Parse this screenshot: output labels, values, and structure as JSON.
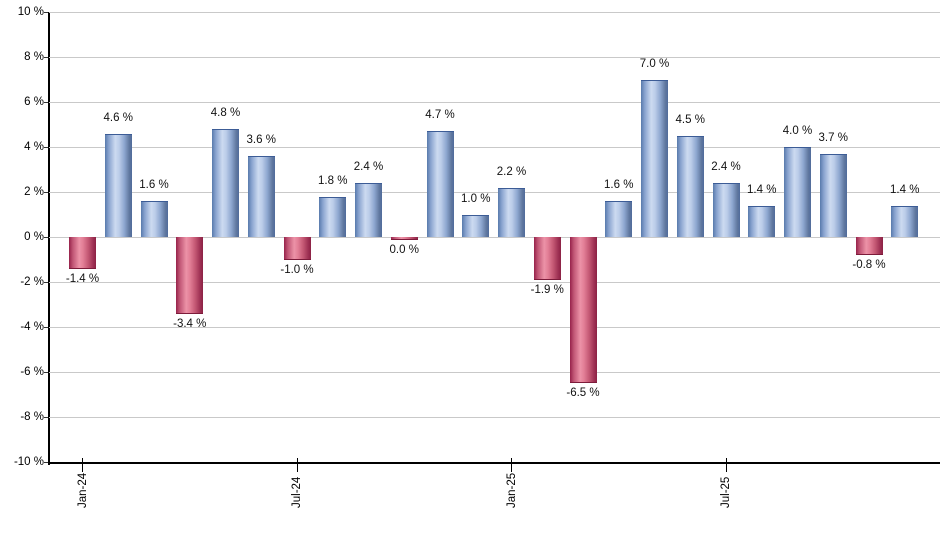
{
  "chart_data": {
    "type": "bar",
    "title": "",
    "categories": [
      "Jan-24",
      "Feb-24",
      "Mar-24",
      "Apr-24",
      "May-24",
      "Jun-24",
      "Jul-24",
      "Aug-24",
      "Sep-24",
      "Oct-24",
      "Nov-24",
      "Dec-24",
      "Jan-25",
      "Feb-25",
      "Mar-25",
      "Apr-25",
      "May-25",
      "Jun-25",
      "Jul-25",
      "Aug-25",
      "Sep-25",
      "Oct-25",
      "Nov-25",
      "Dec-25"
    ],
    "values": [
      -1.4,
      4.6,
      1.6,
      -3.4,
      4.8,
      3.6,
      -1.0,
      1.8,
      2.4,
      0.0,
      4.7,
      1.0,
      2.2,
      -1.9,
      -6.5,
      1.6,
      7.0,
      4.5,
      2.4,
      1.4,
      4.0,
      3.7,
      -0.8,
      1.4
    ],
    "bar_labels": [
      "-1.4 %",
      "4.6 %",
      "1.6 %",
      "-3.4 %",
      "4.8 %",
      "3.6 %",
      "-1.0 %",
      "1.8 %",
      "2.4 %",
      "0.0 %",
      "4.7 %",
      "1.0 %",
      "2.2 %",
      "-1.9 %",
      "-6.5 %",
      "1.6 %",
      "7.0 %",
      "4.5 %",
      "2.4 %",
      "1.4 %",
      "4.0 %",
      "3.7 %",
      "-0.8 %",
      "1.4 %"
    ],
    "x_tick_labels": [
      "Jan-24",
      "Jul-24",
      "Jan-25",
      "Jul-25"
    ],
    "x_tick_month_indices": [
      0,
      6,
      12,
      18
    ],
    "y_tick_labels": [
      "10 %",
      "8 %",
      "6 %",
      "4 %",
      "2 %",
      "0 %",
      "-2 %",
      "-4 %",
      "-6 %",
      "-8 %",
      "-10 %"
    ],
    "y_tick_values": [
      10,
      8,
      6,
      4,
      2,
      0,
      -2,
      -4,
      -6,
      -8,
      -10
    ],
    "ylim": [
      -10,
      10
    ],
    "grid": "horizontal",
    "legend": "none",
    "colors": {
      "positive_bar": "#7b97c4",
      "positive_bar_highlight": "#ccdaf0",
      "positive_bar_edge": "#3c5c96",
      "negative_bar": "#c05574",
      "negative_bar_highlight": "#ec92a7",
      "negative_bar_edge": "#8c2144",
      "gridline": "#c9c9c9",
      "axis": "#000000",
      "label_text": "#111111",
      "background": "#ffffff"
    }
  }
}
